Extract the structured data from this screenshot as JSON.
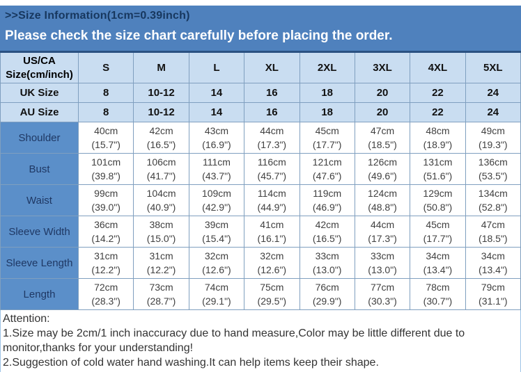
{
  "banner": {
    "title": ">>Size Information(1cm=0.39inch)",
    "subtitle": "Please check the size chart carefully before placing the order."
  },
  "size_chart": {
    "corner_header_line1": "US/CA",
    "corner_header_line2": "Size(cm/inch)",
    "columns": [
      "S",
      "M",
      "L",
      "XL",
      "2XL",
      "3XL",
      "4XL",
      "5XL"
    ],
    "uk_row": {
      "label": "UK Size",
      "values": [
        "8",
        "10-12",
        "14",
        "16",
        "18",
        "20",
        "22",
        "24"
      ]
    },
    "au_row": {
      "label": "AU Size",
      "values": [
        "8",
        "10-12",
        "14",
        "16",
        "18",
        "20",
        "22",
        "24"
      ]
    },
    "measurement_rows": [
      {
        "label": "Shoulder",
        "cm": [
          "40cm",
          "42cm",
          "43cm",
          "44cm",
          "45cm",
          "47cm",
          "48cm",
          "49cm"
        ],
        "inch": [
          "(15.7\")",
          "(16.5\")",
          "(16.9\")",
          "(17.3\")",
          "(17.7\")",
          "(18.5\")",
          "(18.9\")",
          "(19.3\")"
        ]
      },
      {
        "label": "Bust",
        "cm": [
          "101cm",
          "106cm",
          "111cm",
          "116cm",
          "121cm",
          "126cm",
          "131cm",
          "136cm"
        ],
        "inch": [
          "(39.8\")",
          "(41.7\")",
          "(43.7\")",
          "(45.7\")",
          "(47.6\")",
          "(49.6\")",
          "(51.6\")",
          "(53.5\")"
        ]
      },
      {
        "label": "Waist",
        "cm": [
          "99cm",
          "104cm",
          "109cm",
          "114cm",
          "119cm",
          "124cm",
          "129cm",
          "134cm"
        ],
        "inch": [
          "(39.0\")",
          "(40.9\")",
          "(42.9\")",
          "(44.9\")",
          "(46.9\")",
          "(48.8\")",
          "(50.8\")",
          "(52.8\")"
        ]
      },
      {
        "label": "Sleeve Width",
        "cm": [
          "36cm",
          "38cm",
          "39cm",
          "41cm",
          "42cm",
          "44cm",
          "45cm",
          "47cm"
        ],
        "inch": [
          "(14.2\")",
          "(15.0\")",
          "(15.4\")",
          "(16.1\")",
          "(16.5\")",
          "(17.3\")",
          "(17.7\")",
          "(18.5\")"
        ]
      },
      {
        "label": "Sleeve Length",
        "cm": [
          "31cm",
          "31cm",
          "32cm",
          "32cm",
          "33cm",
          "33cm",
          "34cm",
          "34cm"
        ],
        "inch": [
          "(12.2\")",
          "(12.2\")",
          "(12.6\")",
          "(12.6\")",
          "(13.0\")",
          "(13.0\")",
          "(13.4\")",
          "(13.4\")"
        ]
      },
      {
        "label": "Length",
        "cm": [
          "72cm",
          "73cm",
          "74cm",
          "75cm",
          "76cm",
          "77cm",
          "78cm",
          "79cm"
        ],
        "inch": [
          "(28.3\")",
          "(28.7\")",
          "(29.1\")",
          "(29.5\")",
          "(29.9\")",
          "(30.3\")",
          "(30.7\")",
          "(31.1\")"
        ]
      }
    ]
  },
  "attention": {
    "title": "Attention:",
    "note1": "1.Size may be 2cm/1 inch inaccuracy due to hand measure,Color may be little different due to monitor,thanks for your understanding!",
    "note2": "2.Suggestion of cold water hand washing.It can help items keep their shape."
  },
  "colors": {
    "banner_background": "#4f81bd",
    "banner_title_text": "#17375e",
    "banner_subtitle_text": "#ffffff",
    "header_cell_background": "#c9ddf1",
    "label_cell_background": "#5b8fc9",
    "label_cell_text": "#1f3864",
    "table_border": "#7f9fbf",
    "attention_border": "#9dc3e6"
  }
}
